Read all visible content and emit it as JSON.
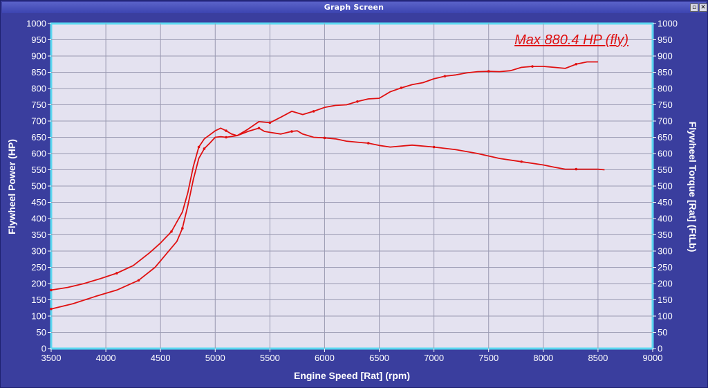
{
  "window": {
    "title": "Graph Screen",
    "restore_icon": "restore-icon",
    "close_icon": "close-icon"
  },
  "colors": {
    "frame": "#3a3e9e",
    "plot_bg": "#e4e2f0",
    "plot_border": "#5cd8f0",
    "grid": "#9a9ab2",
    "curve": "#e01010",
    "text": "#ffffff"
  },
  "chart_data": {
    "type": "line",
    "xlabel": "Engine Speed [Rat] (rpm)",
    "ylabel_left": "Flywheel Power (HP)",
    "ylabel_right": "Flywheel Torque [Rat] (FtLb)",
    "xlim": [
      3500,
      9000
    ],
    "ylim": [
      0,
      1000
    ],
    "xticks": [
      "3500",
      "4000",
      "4500",
      "5000",
      "5500",
      "6000",
      "6500",
      "7000",
      "7500",
      "8000",
      "8500",
      "9000"
    ],
    "yticks": [
      "0",
      "50",
      "100",
      "150",
      "200",
      "250",
      "300",
      "350",
      "400",
      "450",
      "500",
      "550",
      "600",
      "650",
      "700",
      "750",
      "800",
      "850",
      "900",
      "950",
      "1000"
    ],
    "grid": true,
    "annotation": "Max 880.4 HP (fly)",
    "series": [
      {
        "role": "power",
        "color": "#e01010",
        "x": [
          3500,
          3700,
          3900,
          4100,
          4300,
          4450,
          4550,
          4650,
          4700,
          4750,
          4800,
          4850,
          4900,
          4950,
          5000,
          5050,
          5100,
          5200,
          5300,
          5400,
          5500,
          5600,
          5700,
          5800,
          5900,
          6000,
          6100,
          6200,
          6300,
          6400,
          6500,
          6600,
          6700,
          6800,
          6900,
          7000,
          7100,
          7200,
          7300,
          7400,
          7500,
          7600,
          7700,
          7800,
          7900,
          8000,
          8100,
          8200,
          8300,
          8400,
          8500
        ],
        "y": [
          122,
          138,
          160,
          180,
          210,
          250,
          290,
          330,
          370,
          440,
          520,
          585,
          615,
          632,
          650,
          652,
          650,
          655,
          675,
          698,
          695,
          712,
          730,
          720,
          730,
          742,
          748,
          750,
          760,
          768,
          770,
          790,
          802,
          812,
          818,
          830,
          838,
          842,
          848,
          852,
          853,
          852,
          855,
          865,
          868,
          868,
          865,
          862,
          875,
          882,
          882
        ]
      },
      {
        "role": "torque",
        "color": "#e01010",
        "x": [
          3500,
          3650,
          3800,
          3950,
          4100,
          4250,
          4400,
          4500,
          4600,
          4700,
          4750,
          4800,
          4850,
          4900,
          5000,
          5050,
          5100,
          5150,
          5200,
          5300,
          5400,
          5450,
          5500,
          5600,
          5700,
          5750,
          5800,
          5900,
          6000,
          6100,
          6200,
          6300,
          6400,
          6500,
          6600,
          6800,
          7000,
          7200,
          7400,
          7600,
          7800,
          8000,
          8100,
          8200,
          8300,
          8400,
          8500,
          8560
        ],
        "y": [
          180,
          188,
          200,
          215,
          232,
          255,
          295,
          325,
          360,
          420,
          480,
          560,
          620,
          645,
          670,
          678,
          670,
          660,
          655,
          668,
          678,
          668,
          665,
          660,
          668,
          670,
          660,
          650,
          648,
          645,
          638,
          635,
          632,
          625,
          620,
          626,
          620,
          612,
          600,
          585,
          575,
          565,
          558,
          552,
          552,
          552,
          552,
          550
        ]
      }
    ]
  }
}
